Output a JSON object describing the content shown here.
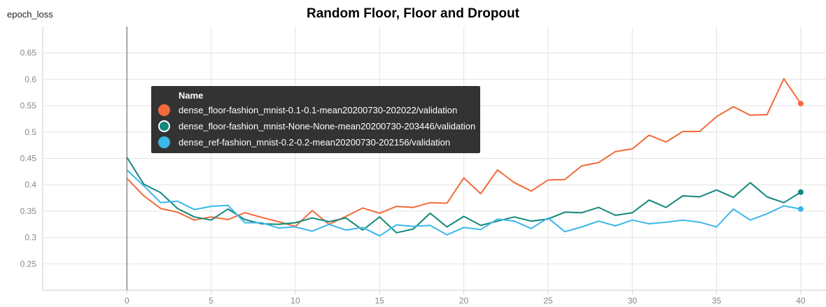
{
  "page_label": "epoch_loss",
  "chart_data": {
    "type": "line",
    "title": "Random Floor, Floor and Dropout",
    "xlim": [
      -5,
      41.5
    ],
    "ylim": [
      0.2,
      0.7
    ],
    "xticks": [
      0,
      5,
      10,
      15,
      20,
      25,
      30,
      35,
      40
    ],
    "yticks": [
      0.25,
      0.3,
      0.35,
      0.4,
      0.45,
      0.5,
      0.55,
      0.6,
      0.65
    ],
    "ytick_labels": [
      "0.25",
      "0.3",
      "0.35",
      "0.4",
      "0.45",
      "0.5",
      "0.55",
      "0.6",
      "0.65"
    ],
    "grid": true,
    "legend_header": "Name",
    "series": [
      {
        "name": "dense_floor-fashion_mnist-0.1-0.1-mean20200730-202022/validation",
        "color": "#f26b3a",
        "x": [
          0,
          1,
          2,
          3,
          4,
          5,
          6,
          7,
          8,
          9,
          10,
          11,
          12,
          13,
          14,
          15,
          16,
          17,
          18,
          19,
          20,
          21,
          22,
          23,
          24,
          25,
          26,
          27,
          28,
          29,
          30,
          31,
          32,
          33,
          34,
          35,
          36,
          37,
          38,
          39,
          40
        ],
        "values": [
          0.412,
          0.379,
          0.355,
          0.348,
          0.333,
          0.339,
          0.334,
          0.347,
          0.338,
          0.33,
          0.321,
          0.351,
          0.325,
          0.34,
          0.356,
          0.346,
          0.359,
          0.357,
          0.366,
          0.365,
          0.413,
          0.383,
          0.428,
          0.404,
          0.388,
          0.409,
          0.41,
          0.436,
          0.442,
          0.463,
          0.468,
          0.494,
          0.481,
          0.501,
          0.501,
          0.529,
          0.548,
          0.532,
          0.533,
          0.601,
          0.554
        ]
      },
      {
        "name": "dense_floor-fashion_mnist-None-None-mean20200730-203446/validation",
        "color": "#11887a",
        "x": [
          0,
          1,
          2,
          3,
          4,
          5,
          6,
          7,
          8,
          9,
          10,
          11,
          12,
          13,
          14,
          15,
          16,
          17,
          18,
          19,
          20,
          21,
          22,
          23,
          24,
          25,
          26,
          27,
          28,
          29,
          30,
          31,
          32,
          33,
          34,
          35,
          36,
          37,
          38,
          39,
          40
        ],
        "values": [
          0.452,
          0.401,
          0.385,
          0.355,
          0.339,
          0.333,
          0.354,
          0.334,
          0.326,
          0.325,
          0.328,
          0.337,
          0.33,
          0.337,
          0.314,
          0.339,
          0.309,
          0.316,
          0.346,
          0.32,
          0.34,
          0.323,
          0.331,
          0.339,
          0.331,
          0.335,
          0.348,
          0.347,
          0.357,
          0.342,
          0.347,
          0.371,
          0.357,
          0.379,
          0.377,
          0.39,
          0.376,
          0.404,
          0.377,
          0.366,
          0.386
        ]
      },
      {
        "name": "dense_ref-fashion_mnist-0.2-0.2-mean20200730-202156/validation",
        "color": "#3bb7ea",
        "x": [
          0,
          1,
          2,
          3,
          4,
          5,
          6,
          7,
          8,
          9,
          10,
          11,
          12,
          13,
          14,
          15,
          16,
          17,
          18,
          19,
          20,
          21,
          22,
          23,
          24,
          25,
          26,
          27,
          28,
          29,
          30,
          31,
          32,
          33,
          34,
          35,
          36,
          37,
          38,
          39,
          40
        ],
        "values": [
          0.428,
          0.398,
          0.366,
          0.369,
          0.353,
          0.359,
          0.361,
          0.328,
          0.328,
          0.318,
          0.32,
          0.312,
          0.325,
          0.314,
          0.319,
          0.303,
          0.324,
          0.321,
          0.323,
          0.305,
          0.319,
          0.315,
          0.335,
          0.331,
          0.317,
          0.337,
          0.311,
          0.32,
          0.331,
          0.322,
          0.333,
          0.326,
          0.329,
          0.333,
          0.329,
          0.32,
          0.354,
          0.333,
          0.345,
          0.36,
          0.354
        ]
      }
    ]
  }
}
